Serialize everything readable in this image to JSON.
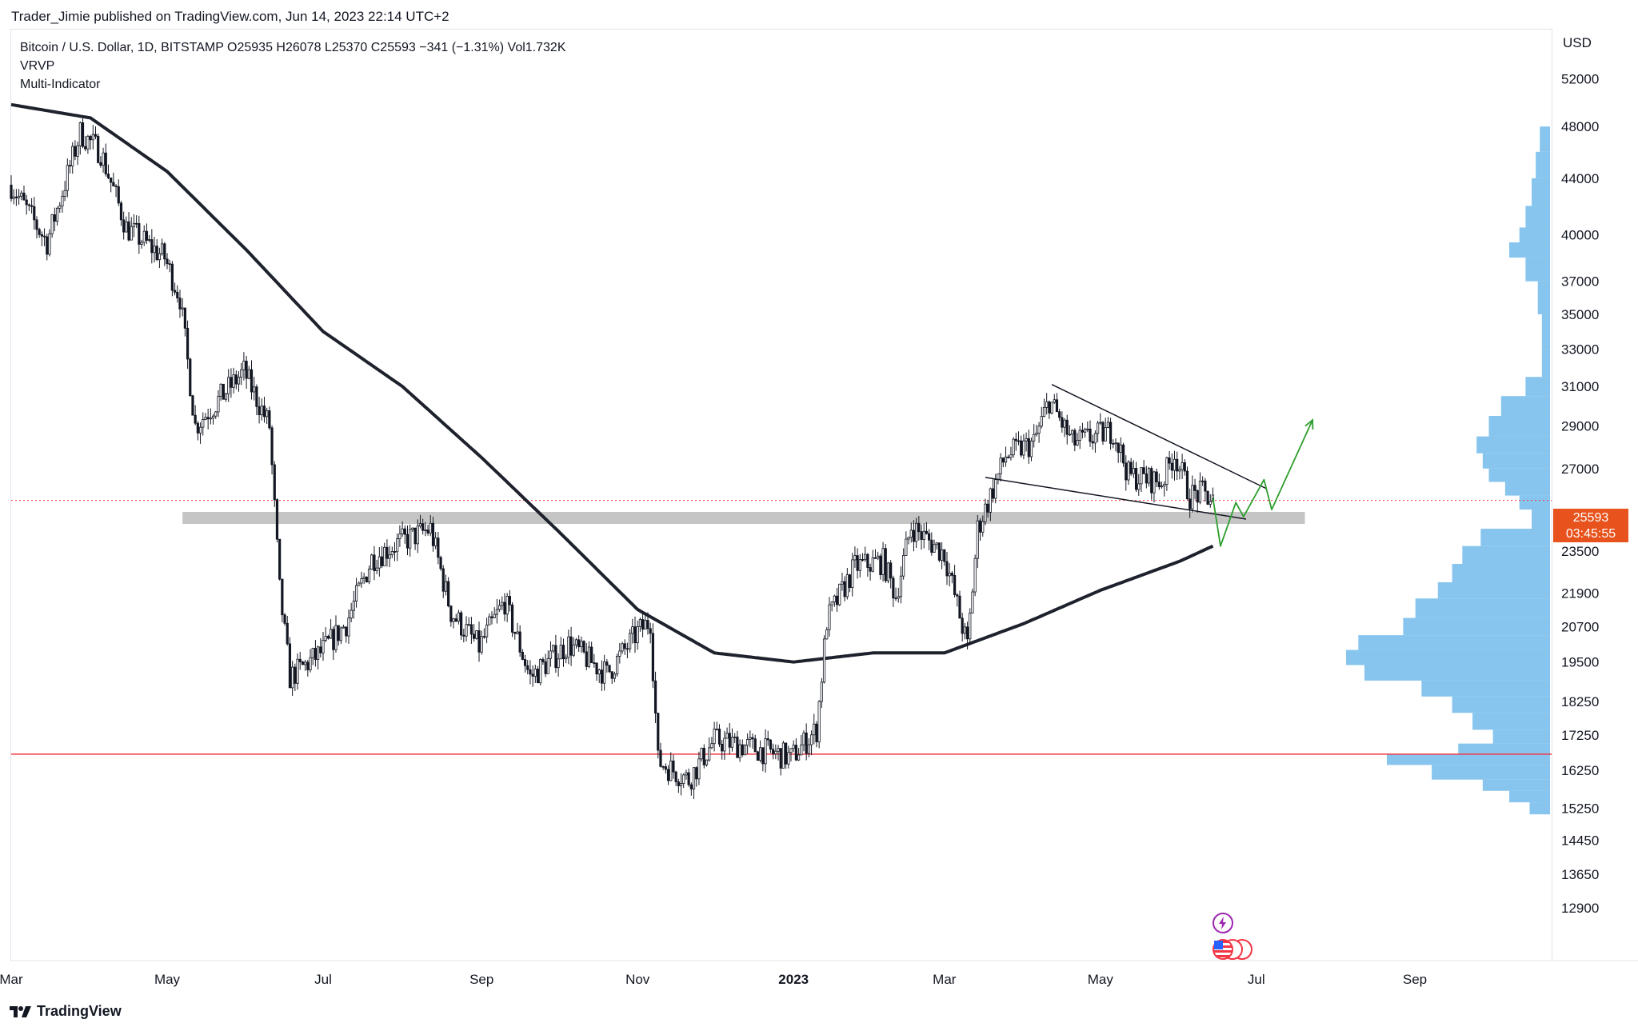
{
  "header": {
    "publish_line": "Trader_Jimie published on TradingView.com, Jun 14, 2023 22:14 UTC+2"
  },
  "legend": {
    "symbol_line": "Bitcoin / U.S. Dollar, 1D, BITSTAMP  O25935  H26078  L25370  C25593  −341 (−1.31%)  Vol1.732K",
    "indicator_1": "VRVP",
    "indicator_2": "Multi-Indicator"
  },
  "price_tag": {
    "price": "25593",
    "countdown": "03:45:55",
    "color": "#e8531d"
  },
  "footer": {
    "brand": "TradingView",
    "logo_icon": "tradingview-logo-icon"
  },
  "events": {
    "flash_icon": "lightning-icon",
    "flag_icon": "us-flag-icon"
  },
  "colors": {
    "candle": "#131722",
    "ma": "#1e222d",
    "support_zone": "#c5c5c5",
    "red_line": "#f23645",
    "projection": "#2e9e2e",
    "volume_profile": "#5fb1e8",
    "price_dotted": "#f23645"
  },
  "chart_data": {
    "type": "candlestick",
    "title": "Bitcoin / U.S. Dollar, 1D, BITSTAMP",
    "currency_label": "USD",
    "y_scale": "log",
    "ylim": [
      11800,
      56500
    ],
    "y_ticks": [
      "52000",
      "48000",
      "44000",
      "40000",
      "37000",
      "35000",
      "33000",
      "31000",
      "29000",
      "27000",
      "23500",
      "21900",
      "20700",
      "19500",
      "18250",
      "17250",
      "16250",
      "15250",
      "14450",
      "13650",
      "12900"
    ],
    "x_ticks": [
      {
        "label": "Mar",
        "date": "2022-03-01",
        "bold": false
      },
      {
        "label": "May",
        "date": "2022-05-01",
        "bold": false
      },
      {
        "label": "Jul",
        "date": "2022-07-01",
        "bold": false
      },
      {
        "label": "Sep",
        "date": "2022-09-01",
        "bold": false
      },
      {
        "label": "Nov",
        "date": "2022-11-01",
        "bold": false
      },
      {
        "label": "2023",
        "date": "2023-01-01",
        "bold": true
      },
      {
        "label": "Mar",
        "date": "2023-03-01",
        "bold": false
      },
      {
        "label": "May",
        "date": "2023-05-01",
        "bold": false
      },
      {
        "label": "Jul",
        "date": "2023-07-01",
        "bold": false
      },
      {
        "label": "Sep",
        "date": "2023-09-01",
        "bold": false
      }
    ],
    "close_path": [
      [
        "2022-03-01",
        43500
      ],
      [
        "2022-03-15",
        39500
      ],
      [
        "2022-03-28",
        47500
      ],
      [
        "2022-04-05",
        46000
      ],
      [
        "2022-04-15",
        40500
      ],
      [
        "2022-04-30",
        38500
      ],
      [
        "2022-05-06",
        36000
      ],
      [
        "2022-05-12",
        29000
      ],
      [
        "2022-05-31",
        31800
      ],
      [
        "2022-06-10",
        29000
      ],
      [
        "2022-06-14",
        22000
      ],
      [
        "2022-06-18",
        19000
      ],
      [
        "2022-06-30",
        19800
      ],
      [
        "2022-07-10",
        20800
      ],
      [
        "2022-07-20",
        23200
      ],
      [
        "2022-07-30",
        23800
      ],
      [
        "2022-08-12",
        24400
      ],
      [
        "2022-08-20",
        21200
      ],
      [
        "2022-08-31",
        20000
      ],
      [
        "2022-09-10",
        21600
      ],
      [
        "2022-09-20",
        19000
      ],
      [
        "2022-10-05",
        20100
      ],
      [
        "2022-10-20",
        19100
      ],
      [
        "2022-11-01",
        20500
      ],
      [
        "2022-11-06",
        20900
      ],
      [
        "2022-11-09",
        16500
      ],
      [
        "2022-11-21",
        16000
      ],
      [
        "2022-12-01",
        17100
      ],
      [
        "2022-12-15",
        16900
      ],
      [
        "2022-12-31",
        16600
      ],
      [
        "2023-01-10",
        17400
      ],
      [
        "2023-01-14",
        20900
      ],
      [
        "2023-01-25",
        22900
      ],
      [
        "2023-02-05",
        23100
      ],
      [
        "2023-02-10",
        21800
      ],
      [
        "2023-02-16",
        24500
      ],
      [
        "2023-03-01",
        23400
      ],
      [
        "2023-03-10",
        20000
      ],
      [
        "2023-03-14",
        24400
      ],
      [
        "2023-03-25",
        27600
      ],
      [
        "2023-04-05",
        28200
      ],
      [
        "2023-04-11",
        30300
      ],
      [
        "2023-04-20",
        28200
      ],
      [
        "2023-04-26",
        28400
      ],
      [
        "2023-05-06",
        28800
      ],
      [
        "2023-05-12",
        26700
      ],
      [
        "2023-05-25",
        26400
      ],
      [
        "2023-05-30",
        27700
      ],
      [
        "2023-06-05",
        25800
      ],
      [
        "2023-06-10",
        25900
      ],
      [
        "2023-06-14",
        25593
      ]
    ],
    "moving_average": [
      [
        "2022-03-01",
        49800
      ],
      [
        "2022-04-01",
        48700
      ],
      [
        "2022-05-01",
        44500
      ],
      [
        "2022-06-01",
        39000
      ],
      [
        "2022-07-01",
        34000
      ],
      [
        "2022-08-01",
        31000
      ],
      [
        "2022-09-01",
        27500
      ],
      [
        "2022-10-01",
        24300
      ],
      [
        "2022-11-01",
        21300
      ],
      [
        "2022-12-01",
        19800
      ],
      [
        "2023-01-01",
        19500
      ],
      [
        "2023-02-01",
        19800
      ],
      [
        "2023-03-01",
        19800
      ],
      [
        "2023-04-01",
        20800
      ],
      [
        "2023-05-01",
        22000
      ],
      [
        "2023-06-01",
        23100
      ],
      [
        "2023-06-14",
        23700
      ]
    ],
    "support_zone": {
      "from": "2022-05-07",
      "to": "2023-07-20",
      "low": 24600,
      "high": 25100
    },
    "horizontal_line": {
      "price": 16700
    },
    "last_price_line": {
      "price": 25593
    },
    "wedge_upper": [
      [
        "2023-04-12",
        31100
      ],
      [
        "2023-07-05",
        26100
      ]
    ],
    "wedge_lower": [
      [
        "2023-03-17",
        26600
      ],
      [
        "2023-06-27",
        24800
      ]
    ],
    "projection": [
      [
        "2023-06-14",
        25700
      ],
      [
        "2023-06-17",
        23700
      ],
      [
        "2023-06-23",
        25500
      ],
      [
        "2023-06-26",
        24900
      ],
      [
        "2023-07-04",
        26500
      ],
      [
        "2023-07-07",
        25200
      ],
      [
        "2023-07-23",
        29300
      ]
    ],
    "volume_profile": [
      [
        48000,
        0.05
      ],
      [
        46000,
        0.07
      ],
      [
        44000,
        0.09
      ],
      [
        42000,
        0.12
      ],
      [
        40500,
        0.15
      ],
      [
        39500,
        0.2
      ],
      [
        38500,
        0.12
      ],
      [
        37000,
        0.06
      ],
      [
        35000,
        0.04
      ],
      [
        33000,
        0.04
      ],
      [
        31500,
        0.12
      ],
      [
        30500,
        0.24
      ],
      [
        29500,
        0.3
      ],
      [
        28500,
        0.36
      ],
      [
        27700,
        0.33
      ],
      [
        27000,
        0.3
      ],
      [
        26400,
        0.22
      ],
      [
        25800,
        0.15
      ],
      [
        25200,
        0.09
      ],
      [
        24400,
        0.34
      ],
      [
        23700,
        0.43
      ],
      [
        23000,
        0.48
      ],
      [
        22300,
        0.55
      ],
      [
        21700,
        0.66
      ],
      [
        21000,
        0.72
      ],
      [
        20400,
        0.94
      ],
      [
        19900,
        1.0
      ],
      [
        19400,
        0.91
      ],
      [
        18900,
        0.63
      ],
      [
        18400,
        0.48
      ],
      [
        17900,
        0.38
      ],
      [
        17400,
        0.28
      ],
      [
        17000,
        0.45
      ],
      [
        16700,
        0.8
      ],
      [
        16400,
        0.58
      ],
      [
        16000,
        0.33
      ],
      [
        15700,
        0.2
      ],
      [
        15400,
        0.1
      ]
    ]
  }
}
